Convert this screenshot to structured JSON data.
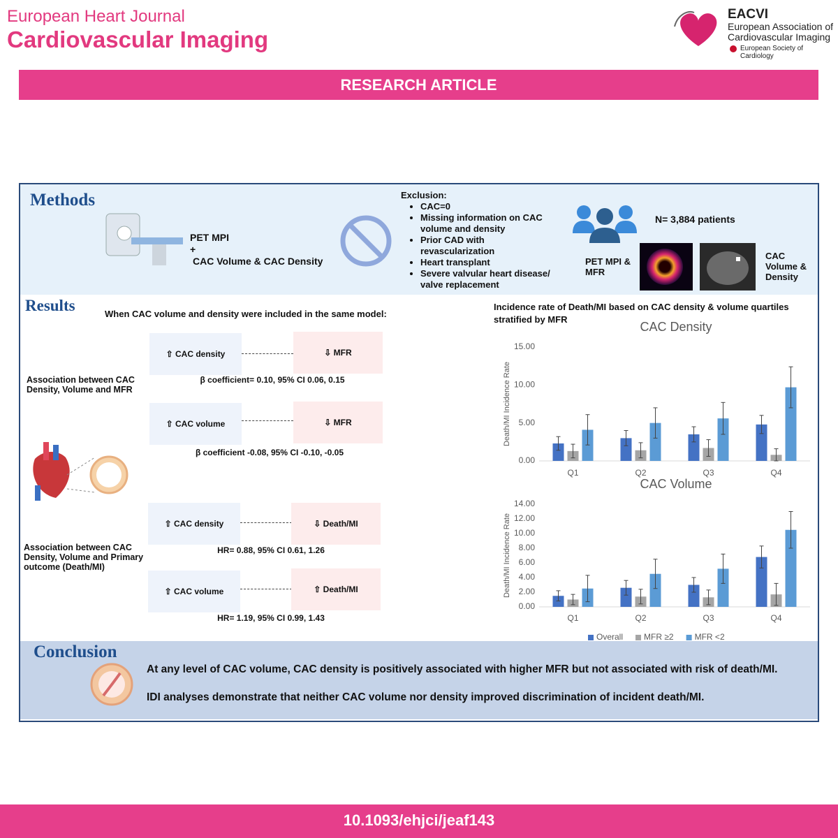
{
  "header": {
    "journal_line1": "European Heart Journal",
    "journal_line2": "Cardiovascular Imaging",
    "society_abbrev": "EACVI",
    "society_name_line1": "European Association of",
    "society_name_line2": "Cardiovascular Imaging",
    "parent_society": "European Society of Cardiology"
  },
  "banner": "RESEARCH ARTICLE",
  "methods": {
    "title": "Methods",
    "imaging_lines": [
      "PET MPI",
      "+",
      "CAC Volume & CAC Density"
    ],
    "exclusion_title": "Exclusion:",
    "exclusions": [
      "CAC=0",
      "Missing information on CAC volume and density",
      "Prior CAD with revascularization",
      "Heart transplant",
      "Severe valvular heart disease/ valve replacement"
    ],
    "patients": "N= 3,884 patients",
    "pet_label": "PET MPI & MFR",
    "ct_label": "CAC Volume & Density"
  },
  "results": {
    "title": "Results",
    "model_note": "When CAC volume and density were included in the same model:",
    "mfr_heading": "Association between CAC Density, Volume  and MFR",
    "mfr_rows": [
      {
        "left": "⇧ CAC density",
        "right": "⇩ MFR",
        "stat": "β coefficient= 0.10, 95% CI 0.06, 0.15"
      },
      {
        "left": "⇧ CAC volume",
        "right": "⇩ MFR",
        "stat": "β coefficient -0.08, 95% CI -0.10, -0.05"
      }
    ],
    "outcome_heading": "Association between CAC Density, Volume and Primary outcome (Death/MI)",
    "outcome_rows": [
      {
        "left": "⇧ CAC density",
        "right": "⇩ Death/MI",
        "stat": "HR= 0.88, 95% CI 0.61, 1.26"
      },
      {
        "left": "⇧ CAC volume",
        "right": "⇧ Death/MI",
        "stat": "HR= 1.19, 95% CI 0.99, 1.43"
      }
    ],
    "charts_title": "Incidence rate of Death/MI based on CAC density & volume quartiles stratified by MFR"
  },
  "chart_data": [
    {
      "type": "bar",
      "title": "CAC Density",
      "y_label": "Death/MI Incidence Rate",
      "categories": [
        "Q1",
        "Q2",
        "Q3",
        "Q4"
      ],
      "ylim": [
        0,
        15
      ],
      "yticks": [
        {
          "value": 0,
          "label": "0.00"
        },
        {
          "value": 5,
          "label": "5.00"
        },
        {
          "value": 10,
          "label": "10.00"
        },
        {
          "value": 15,
          "label": "15.00"
        }
      ],
      "series": [
        {
          "color": "#4472c4",
          "values": [
            2.3,
            3.0,
            3.5,
            4.8
          ],
          "errors": [
            0.9,
            1.0,
            1.0,
            1.2
          ]
        },
        {
          "color": "#a5a5a5",
          "values": [
            1.3,
            1.4,
            1.7,
            0.8
          ],
          "errors": [
            0.9,
            1.0,
            1.1,
            0.8
          ]
        },
        {
          "color": "#5b9bd5",
          "values": [
            4.1,
            5.0,
            5.6,
            9.7
          ],
          "errors": [
            2.0,
            2.0,
            2.1,
            2.7
          ]
        }
      ]
    },
    {
      "type": "bar",
      "title": "CAC Volume",
      "y_label": "Death/MI Incidence Rate",
      "categories": [
        "Q1",
        "Q2",
        "Q3",
        "Q4"
      ],
      "ylim": [
        0,
        14
      ],
      "yticks": [
        {
          "value": 0,
          "label": "0.00"
        },
        {
          "value": 2,
          "label": "2.00"
        },
        {
          "value": 4,
          "label": "4.00"
        },
        {
          "value": 6,
          "label": "6.00"
        },
        {
          "value": 8,
          "label": "8.00"
        },
        {
          "value": 10,
          "label": "10.00"
        },
        {
          "value": 12,
          "label": "12.00"
        },
        {
          "value": 14,
          "label": "14.00"
        }
      ],
      "series": [
        {
          "name": "Overall",
          "color": "#4472c4",
          "values": [
            1.5,
            2.6,
            3.0,
            6.8
          ],
          "errors": [
            0.7,
            1.0,
            1.0,
            1.5
          ]
        },
        {
          "name": "MFR ≥2",
          "color": "#a5a5a5",
          "values": [
            1.0,
            1.4,
            1.3,
            1.7
          ],
          "errors": [
            0.7,
            1.0,
            1.0,
            1.5
          ]
        },
        {
          "name": "MFR <2",
          "color": "#5b9bd5",
          "values": [
            2.5,
            4.5,
            5.2,
            10.5
          ],
          "errors": [
            1.8,
            2.0,
            2.0,
            2.5
          ]
        }
      ]
    }
  ],
  "conclusion": {
    "title": "Conclusion",
    "points": [
      "At any level of CAC volume, CAC density is positively associated with higher MFR but not associated with risk of death/MI.",
      "IDI analyses demonstrate that neither CAC volume nor density improved discrimination of incident death/MI."
    ]
  },
  "doi": "10.1093/ehjci/jeaf143"
}
